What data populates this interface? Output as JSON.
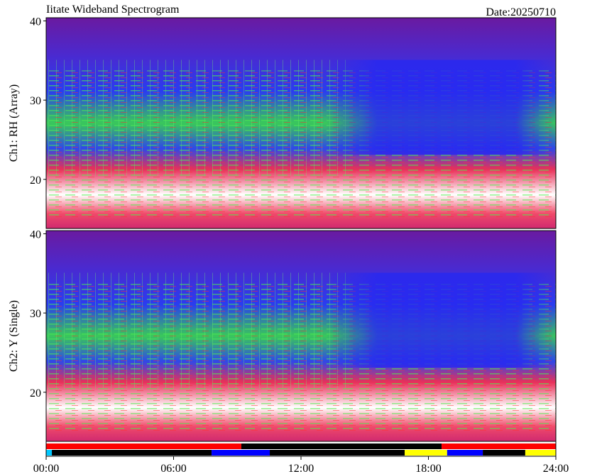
{
  "chart_data": {
    "type": "spectrogram",
    "title": "Iitate Wideband Spectrogram",
    "date": "Date:20250710",
    "xlim": [
      0,
      24
    ],
    "xticks": [
      {
        "value": 0,
        "label": "00:00"
      },
      {
        "value": 6,
        "label": "06:00"
      },
      {
        "value": 12,
        "label": "12:00"
      },
      {
        "value": 18,
        "label": "18:00"
      },
      {
        "value": 24,
        "label": "24:00"
      }
    ],
    "panels": [
      {
        "ylabel": "Ch1: RH (Array)",
        "ylim": [
          13.8,
          40.4
        ],
        "yticks": [
          20,
          30,
          40
        ]
      },
      {
        "ylabel": "Ch2: Y (Single)",
        "ylim": [
          13.8,
          40.4
        ],
        "yticks": [
          20,
          30,
          40
        ]
      }
    ],
    "status_bars": [
      [
        {
          "start": 0,
          "end": 9.19,
          "color": "#ff0000"
        },
        {
          "start": 9.19,
          "end": 18.62,
          "color": "#000000"
        },
        {
          "start": 18.62,
          "end": 24,
          "color": "#ff0000"
        }
      ],
      [
        {
          "start": 0,
          "end": 0.27,
          "color": "#00c8ff"
        },
        {
          "start": 0.27,
          "end": 7.79,
          "color": "#000000"
        },
        {
          "start": 7.79,
          "end": 10.53,
          "color": "#0000ff"
        },
        {
          "start": 10.53,
          "end": 16.88,
          "color": "#000000"
        },
        {
          "start": 16.88,
          "end": 18.88,
          "color": "#ffff00"
        },
        {
          "start": 18.88,
          "end": 20.56,
          "color": "#0000ff"
        },
        {
          "start": 20.56,
          "end": 22.56,
          "color": "#000000"
        },
        {
          "start": 22.56,
          "end": 24,
          "color": "#ffff00"
        }
      ]
    ]
  }
}
